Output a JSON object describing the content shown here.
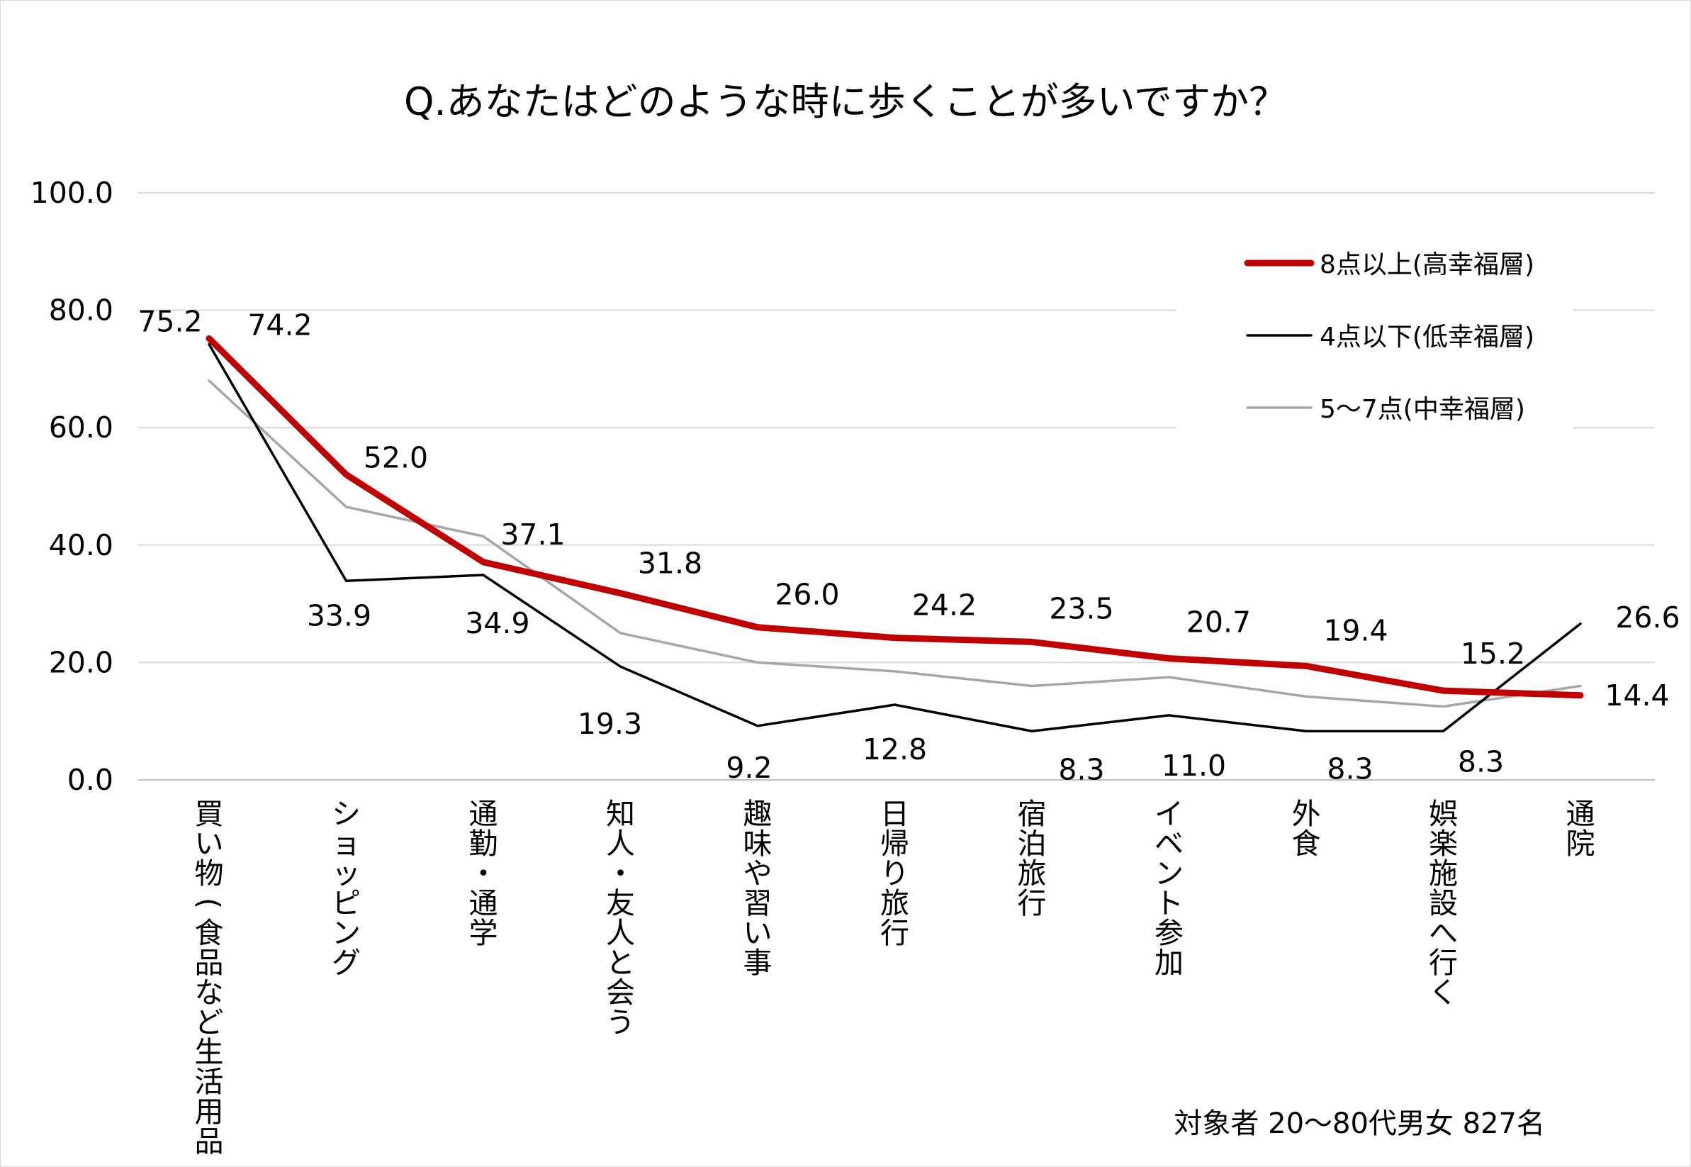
{
  "chart_data": {
    "type": "line",
    "title": "Q.あなたはどのような時に歩くことが多いですか？",
    "categories": [
      "買い物(食品など生活用品)",
      "ショッピング",
      "通勤・通学",
      "知人・友人と会う",
      "趣味や習い事",
      "日帰り旅行",
      "宿泊旅行",
      "イベント参加",
      "外食",
      "娯楽施設へ行く",
      "通院"
    ],
    "ylim": [
      0,
      100
    ],
    "yticks": [
      "0.0",
      "20.0",
      "40.0",
      "60.0",
      "80.0",
      "100.0"
    ],
    "grid": true,
    "legend_position": "top-right",
    "series": [
      {
        "name": "8点以上(高幸福層)",
        "color": "#c00000",
        "values": [
          75.2,
          52.0,
          37.1,
          31.8,
          26.0,
          24.2,
          23.5,
          20.7,
          19.4,
          15.2,
          14.4
        ],
        "labels": [
          "75.2",
          "52.0",
          "37.1",
          "31.8",
          "26.0",
          "24.2",
          "23.5",
          "20.7",
          "19.4",
          "15.2",
          "14.4"
        ]
      },
      {
        "name": "4点以下(低幸福層)",
        "color": "#000000",
        "values": [
          74.2,
          33.9,
          34.9,
          19.3,
          9.2,
          12.8,
          8.3,
          11.0,
          8.3,
          8.3,
          26.6
        ],
        "labels": [
          "74.2",
          "33.9",
          "34.9",
          "19.3",
          "9.2",
          "12.8",
          "8.3",
          "11.0",
          "8.3",
          "8.3",
          "26.6"
        ]
      },
      {
        "name": "5～7点(中幸福層)",
        "color": "#a6a6a6",
        "values": [
          68.0,
          46.5,
          41.5,
          25.0,
          20.0,
          18.5,
          16.0,
          17.5,
          14.2,
          12.5,
          16.0
        ]
      }
    ],
    "note": "対象者 20～80代男女 827名"
  }
}
